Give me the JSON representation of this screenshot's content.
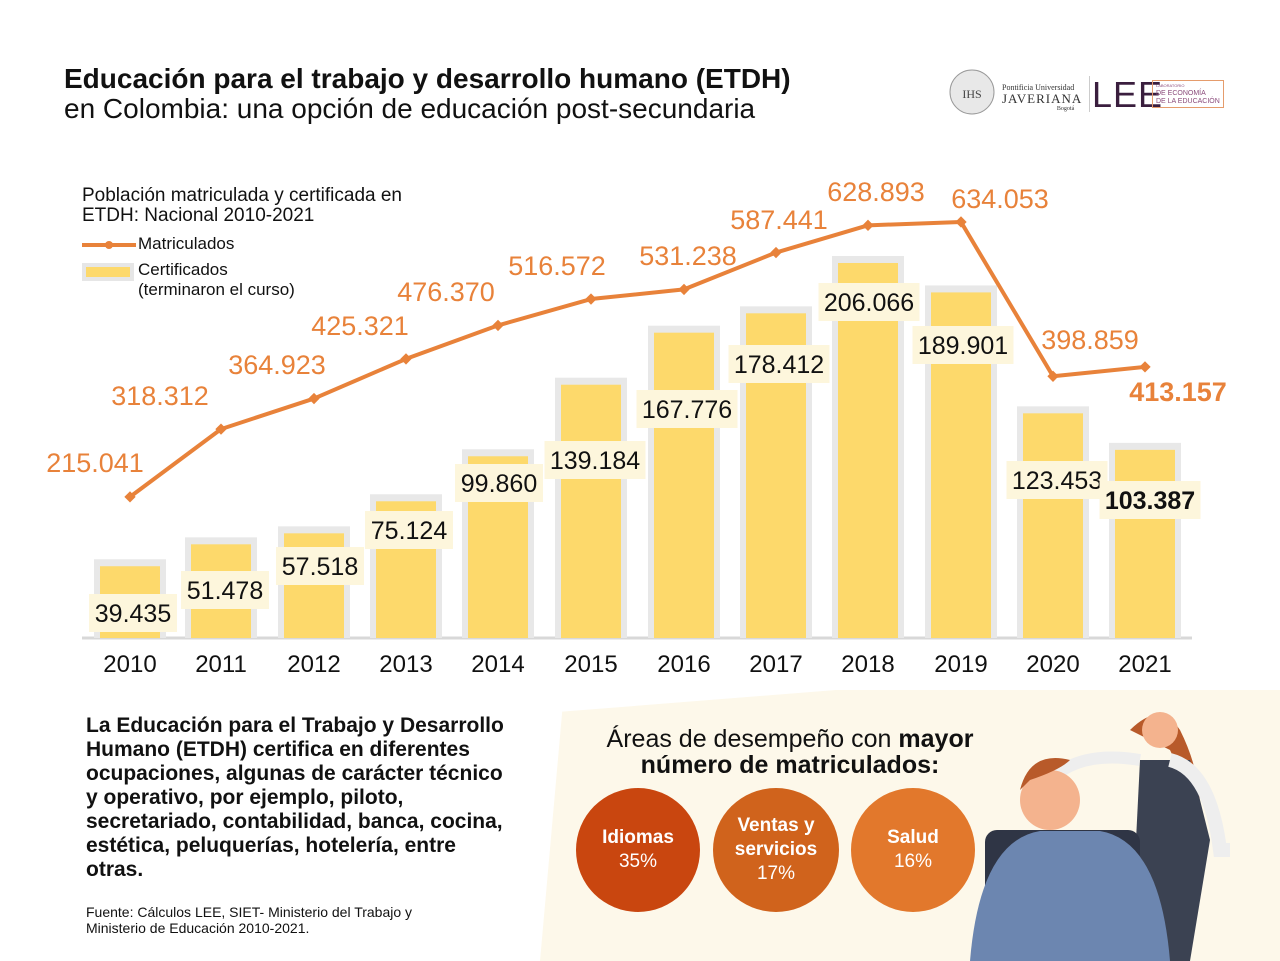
{
  "header": {
    "title_line1": "Educación para el trabajo y desarrollo humano (ETDH)",
    "title_line2": "en Colombia: una opción de educación post-secundaria"
  },
  "logos": {
    "javeriana_line1": "Pontificia Universidad",
    "javeriana_line2": "JAVERIANA",
    "javeriana_line3": "Bogotá",
    "seal": "IHS",
    "lee": "LEE",
    "lee_sub1": "LABORATORIO",
    "lee_sub2": "DE ECONOMÍA",
    "lee_sub3": "DE LA EDUCACIÓN"
  },
  "chart_data": {
    "type": "bar+line",
    "title": "Población matriculada y certificada en ETDH: Nacional 2010-2021",
    "categories": [
      "2010",
      "2011",
      "2012",
      "2013",
      "2014",
      "2015",
      "2016",
      "2017",
      "2018",
      "2019",
      "2020",
      "2021"
    ],
    "series": [
      {
        "name": "Matriculados",
        "type": "line",
        "color": "#e8823a",
        "values": [
          215041,
          318312,
          364923,
          425321,
          476370,
          516572,
          531238,
          587441,
          628893,
          634053,
          398859,
          413157
        ],
        "labels": [
          "215.041",
          "318.312",
          "364.923",
          "425.321",
          "476.370",
          "516.572",
          "531.238",
          "587.441",
          "628.893",
          "634.053",
          "398.859",
          "413.157"
        ]
      },
      {
        "name": "Certificados (terminaron el curso)",
        "type": "bar",
        "color": "#fdd96b",
        "values": [
          39435,
          51478,
          57518,
          75124,
          99860,
          139184,
          167776,
          178412,
          206066,
          189901,
          123453,
          103387
        ],
        "labels": [
          "39.435",
          "51.478",
          "57.518",
          "75.124",
          "99.860",
          "139.184",
          "167.776",
          "178.412",
          "206.066",
          "189.901",
          "123.453",
          "103.387"
        ]
      }
    ],
    "legend": {
      "line": "Matriculados",
      "bar_line1": "Certificados",
      "bar_line2": "(terminaron el curso)",
      "placement": "top-left"
    },
    "grid": false
  },
  "description": "La Educación para el Trabajo y Desarrollo Humano (ETDH) certifica en diferentes ocupaciones, algunas de carácter técnico y operativo, por ejemplo, piloto, secretariado, contabilidad, banca, cocina, estética, peluquerías, hotelería, entre otras.",
  "source": "Fuente: Cálculos LEE, SIET- Ministerio del Trabajo y Ministerio de Educación 2010-2021.",
  "areas": {
    "title_normal": "Áreas de desempeño con ",
    "title_bold1": "mayor",
    "title_bold2": "número de matriculados:",
    "items": [
      {
        "name": "Idiomas",
        "pct": "35%",
        "color": "#c9460f"
      },
      {
        "name": "Ventas y servicios",
        "pct": "17%",
        "color": "#d0631c"
      },
      {
        "name": "Salud",
        "pct": "16%",
        "color": "#e2782c"
      }
    ]
  }
}
